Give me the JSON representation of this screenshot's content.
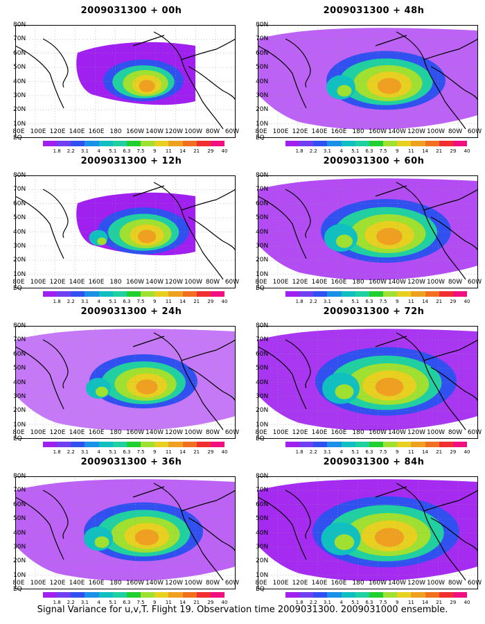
{
  "panels": [
    {
      "title": "2009031300 + 00h"
    },
    {
      "title": "2009031300 + 48h"
    },
    {
      "title": "2009031300 + 12h"
    },
    {
      "title": "2009031300 + 60h"
    },
    {
      "title": "2009031300 + 24h"
    },
    {
      "title": "2009031300 + 72h"
    },
    {
      "title": "2009031300 + 36h"
    },
    {
      "title": "2009031300 + 84h"
    }
  ],
  "x_ticks": [
    "80E",
    "100E",
    "120E",
    "140E",
    "160E",
    "180",
    "160W",
    "140W",
    "120W",
    "100W",
    "80W",
    "60W"
  ],
  "y_ticks": [
    "80N",
    "70N",
    "60N",
    "50N",
    "40N",
    "30N",
    "20N",
    "10N",
    "EQ"
  ],
  "legend": {
    "labels": [
      "1.8",
      "2.2",
      "3.1",
      "4",
      "5.1",
      "6.3",
      "7.5",
      "9",
      "11",
      "14",
      "21",
      "29",
      "40"
    ],
    "colors": [
      "#a020f0",
      "#7040f0",
      "#3050f0",
      "#1a90e8",
      "#10c0c0",
      "#20d0a0",
      "#20d030",
      "#a0e030",
      "#e8d020",
      "#f0a020",
      "#f07020",
      "#f03030",
      "#f01080"
    ]
  },
  "footer": "Signal Variance for u,v,T. Flight 19. Observation time 2009031300. 2009031000 ensemble."
}
